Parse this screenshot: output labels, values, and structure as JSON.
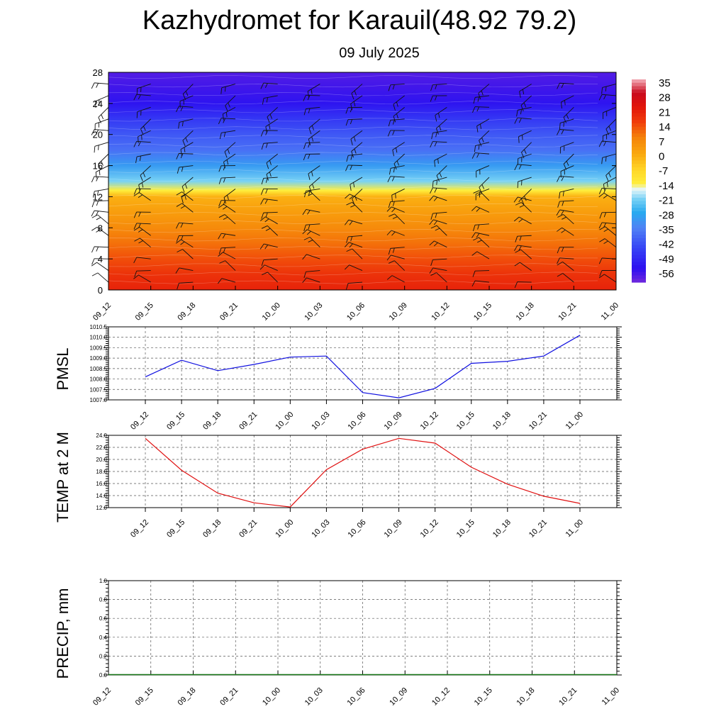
{
  "header": {
    "title": "Kazhydromet for Karauil(48.92 79.2)",
    "subtitle": "09 July 2025"
  },
  "time_labels": [
    "09_12",
    "09_15",
    "09_18",
    "09_21",
    "10_00",
    "10_03",
    "10_06",
    "10_09",
    "10_12",
    "10_15",
    "10_18",
    "10_21",
    "11_00"
  ],
  "chart_data": [
    {
      "type": "heatmap",
      "description_y": "height levels",
      "ylim": [
        0,
        28
      ],
      "yticks": [
        0,
        4,
        8,
        12,
        16,
        20,
        24,
        28
      ],
      "x": [
        "09_12",
        "09_15",
        "09_18",
        "09_21",
        "10_00",
        "10_03",
        "10_06",
        "10_09",
        "10_12",
        "10_15",
        "10_18",
        "10_21",
        "11_00"
      ],
      "colorbar_labels": [
        "35",
        "28",
        "21",
        "14",
        "7",
        "0",
        "-7",
        "-14",
        "-21",
        "-28",
        "-35",
        "-42",
        "-49",
        "-56"
      ],
      "colorbar_range": [
        -63,
        42
      ],
      "profile_levels": [
        0,
        2,
        4,
        6,
        8,
        10,
        12,
        12.8,
        14,
        16,
        18,
        20,
        22,
        24,
        26,
        28
      ],
      "profile_temps": [
        25,
        22,
        18,
        14,
        10,
        6,
        2,
        -12,
        -20,
        -30,
        -38,
        -42,
        -48,
        -55,
        -58,
        -60
      ],
      "wind_barbs": true,
      "colors": {
        "hot": "#e8160c",
        "orange": "#f7a10b",
        "yellow": "#fff14a",
        "cyan": "#2ab8f0",
        "blue": "#3d54f5",
        "deep": "#2a12f0"
      }
    },
    {
      "type": "line",
      "ylabel": "PMSL",
      "ylim": [
        1007.0,
        1010.5
      ],
      "yticks": [
        "1007.0",
        "1007.5",
        "1008.0",
        "1008.5",
        "1009.0",
        "1009.5",
        "1010.0",
        "1010.5"
      ],
      "categories": [
        "09_12",
        "09_15",
        "09_18",
        "09_21",
        "10_00",
        "10_03",
        "10_06",
        "10_09",
        "10_12",
        "10_15",
        "10_18",
        "10_21",
        "11_00"
      ],
      "values": [
        1008.1,
        1008.9,
        1008.4,
        1008.7,
        1009.05,
        1009.1,
        1007.35,
        1007.1,
        1007.55,
        1008.75,
        1008.85,
        1009.1,
        1010.1
      ],
      "color": "#1010e0"
    },
    {
      "type": "line",
      "ylabel": "TEMP at 2 M",
      "ylim": [
        12.0,
        24.0
      ],
      "yticks": [
        "12.0",
        "14.0",
        "16.0",
        "18.0",
        "20.0",
        "22.0",
        "24.0"
      ],
      "categories": [
        "09_12",
        "09_15",
        "09_18",
        "09_21",
        "10_00",
        "10_03",
        "10_06",
        "10_09",
        "10_12",
        "10_15",
        "10_18",
        "10_21",
        "11_00"
      ],
      "values": [
        23.5,
        18.2,
        14.4,
        12.8,
        12.1,
        18.3,
        21.7,
        23.5,
        22.7,
        18.7,
        15.9,
        13.9,
        12.7
      ],
      "color": "#e01010"
    },
    {
      "type": "line",
      "ylabel": "PRECIP, mm",
      "ylim": [
        0.0,
        1.0
      ],
      "yticks": [
        "0.0",
        "0.2",
        "0.4",
        "0.6",
        "0.8",
        "1.0"
      ],
      "categories": [
        "09_12",
        "09_15",
        "09_18",
        "09_21",
        "10_00",
        "10_03",
        "10_06",
        "10_09",
        "10_12",
        "10_15",
        "10_18",
        "10_21",
        "11_00"
      ],
      "values": [
        0,
        0,
        0,
        0,
        0,
        0,
        0,
        0,
        0,
        0,
        0,
        0,
        0
      ],
      "color": "#1a7a1a"
    }
  ]
}
